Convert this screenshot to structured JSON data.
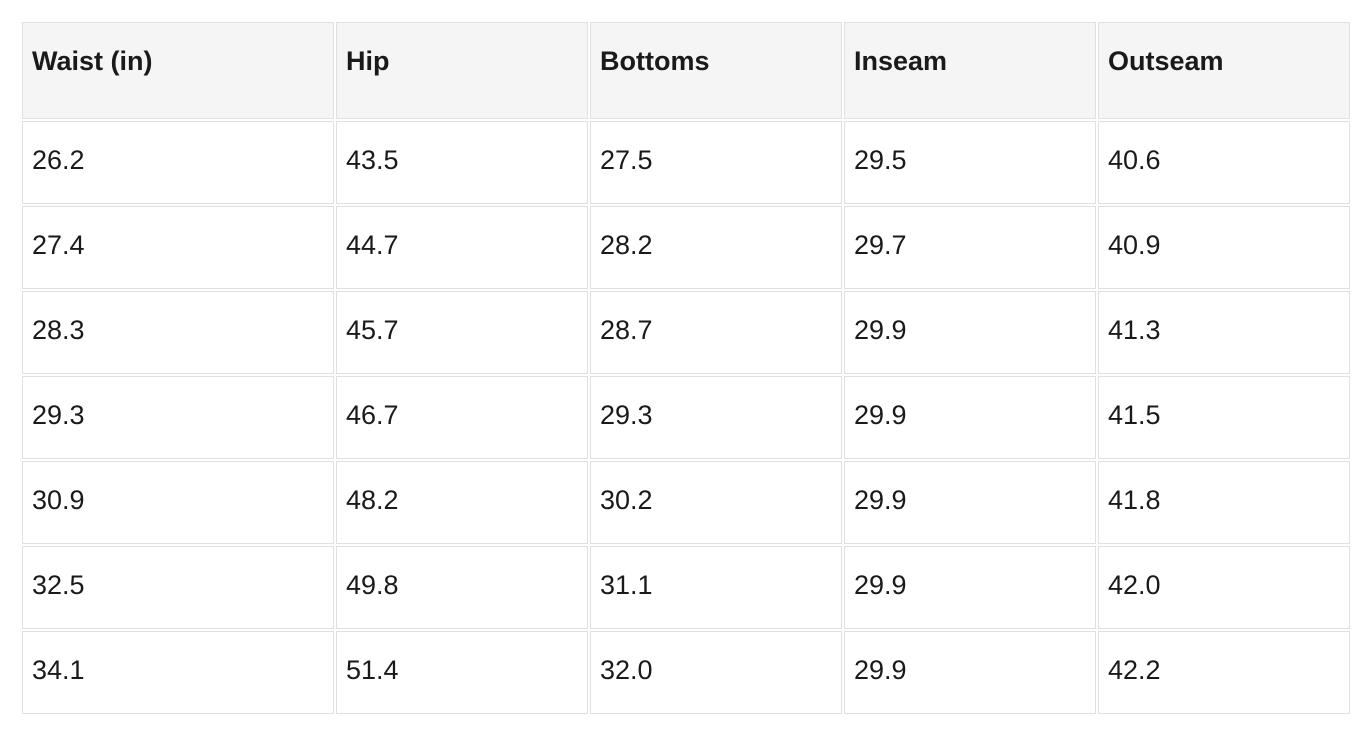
{
  "chart_data": {
    "type": "table",
    "columns": [
      "Waist (in)",
      "Hip",
      "Bottoms",
      "Inseam",
      "Outseam"
    ],
    "rows": [
      [
        "26.2",
        "43.5",
        "27.5",
        "29.5",
        "40.6"
      ],
      [
        "27.4",
        "44.7",
        "28.2",
        "29.7",
        "40.9"
      ],
      [
        "28.3",
        "45.7",
        "28.7",
        "29.9",
        "41.3"
      ],
      [
        "29.3",
        "46.7",
        "29.3",
        "29.9",
        "41.5"
      ],
      [
        "30.9",
        "48.2",
        "30.2",
        "29.9",
        "41.8"
      ],
      [
        "32.5",
        "49.8",
        "31.1",
        "29.9",
        "42.0"
      ],
      [
        "34.1",
        "51.4",
        "32.0",
        "29.9",
        "42.2"
      ]
    ],
    "layout": {
      "legend": "none",
      "grid": "cell-borders",
      "header_row": true
    }
  },
  "colors": {
    "header_background": "#f5f5f5",
    "cell_background": "#ffffff",
    "border": "#e0e0e0",
    "text": "#1a1a1a",
    "page_background": "#ffffff"
  }
}
